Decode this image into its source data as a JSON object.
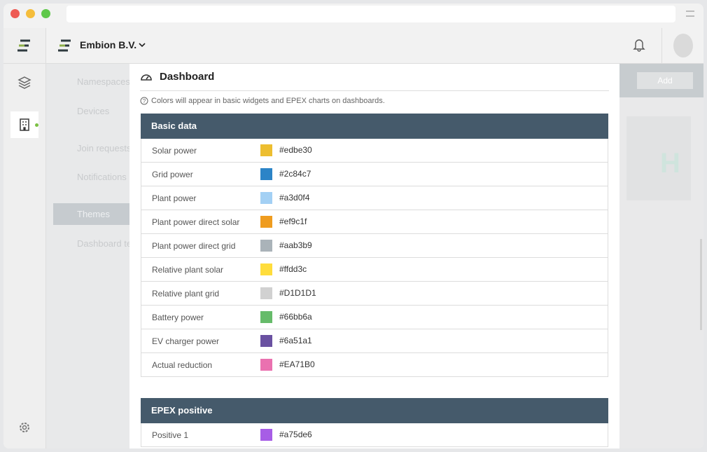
{
  "header": {
    "org": "Embion B.V."
  },
  "sidebar": {
    "items": [
      "Namespaces",
      "Devices",
      "Join requests",
      "Notifications",
      "Themes",
      "Dashboard te"
    ],
    "active": "Themes"
  },
  "toolbar": {
    "button": "Add"
  },
  "panel": {
    "title": "Dashboard",
    "note": "Colors will appear in basic widgets and EPEX charts on dashboards.",
    "sections": [
      {
        "title": "Basic data",
        "rows": [
          {
            "label": "Solar power",
            "color": "#edbe30"
          },
          {
            "label": "Grid power",
            "color": "#2c84c7"
          },
          {
            "label": "Plant power",
            "color": "#a3d0f4"
          },
          {
            "label": "Plant power direct solar",
            "color": "#ef9c1f"
          },
          {
            "label": "Plant power direct grid",
            "color": "#aab3b9"
          },
          {
            "label": "Relative plant solar",
            "color": "#ffdd3c"
          },
          {
            "label": "Relative plant grid",
            "color": "#D1D1D1"
          },
          {
            "label": "Battery power",
            "color": "#66bb6a"
          },
          {
            "label": "EV charger power",
            "color": "#6a51a1"
          },
          {
            "label": "Actual reduction",
            "color": "#EA71B0"
          }
        ]
      },
      {
        "title": "EPEX positive",
        "rows": [
          {
            "label": "Positive 1",
            "color": "#a75de6"
          }
        ]
      }
    ]
  }
}
